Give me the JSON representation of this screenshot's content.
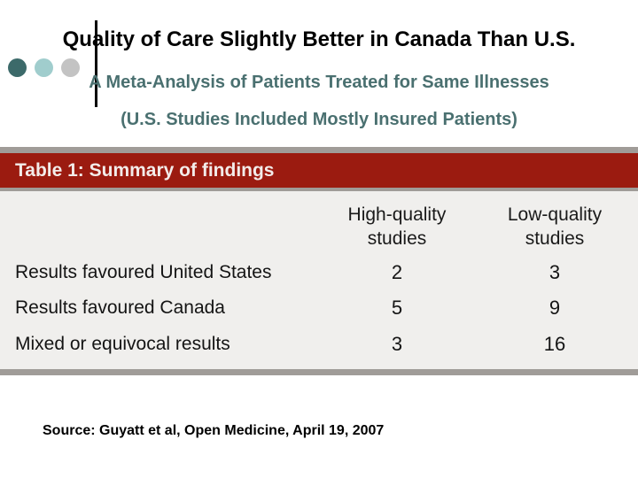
{
  "slide": {
    "title": "Quality of Care Slightly Better in Canada Than U.S.",
    "subtitle": "A Meta-Analysis of Patients Treated for Same Illnesses",
    "subtitle2": "(U.S. Studies Included Mostly Insured Patients)",
    "source": "Source: Guyatt et al, Open Medicine, April 19, 2007"
  },
  "table": {
    "title": "Table 1: Summary of findings",
    "columns": [
      "High-quality studies",
      "Low-quality studies"
    ],
    "rows": [
      {
        "label": "Results favoured United States",
        "high": "2",
        "low": "3"
      },
      {
        "label": "Results favoured Canada",
        "high": "5",
        "low": "9"
      },
      {
        "label": "Mixed or equivocal results",
        "high": "3",
        "low": "16"
      }
    ]
  },
  "colors": {
    "accent_red": "#9B1B10",
    "teal_text": "#4A7070",
    "bullet_dark_teal": "#3C6A6A",
    "bullet_light_teal": "#A0CDCD",
    "bullet_gray": "#C3C3C3",
    "border_gray": "#A09C98",
    "table_body_bg": "#F0EFED",
    "header_text": "#F3ECEA"
  },
  "chart_data": {
    "type": "table",
    "title": "Table 1: Summary of findings",
    "columns": [
      "High-quality studies",
      "Low-quality studies"
    ],
    "categories": [
      "Results favoured United States",
      "Results favoured Canada",
      "Mixed or equivocal results"
    ],
    "series": [
      {
        "name": "High-quality studies",
        "values": [
          2,
          5,
          3
        ]
      },
      {
        "name": "Low-quality studies",
        "values": [
          3,
          9,
          16
        ]
      }
    ]
  }
}
